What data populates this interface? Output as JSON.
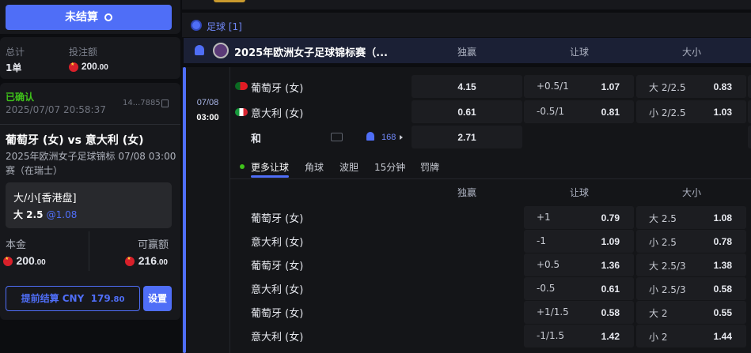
{
  "left": {
    "unsettled_button": "未结算",
    "summary": {
      "total_label": "总计",
      "total_value": "1单",
      "stake_label": "投注额",
      "stake_int": "200",
      "stake_dec": ".00"
    },
    "bet": {
      "status": "已确认",
      "time": "2025/07/07 20:58:37",
      "id": "14...7885",
      "match": "葡萄牙 (女) vs 意大利 (女)",
      "league_line1": "2025年欧洲女子足球锦标  07/08 03:00",
      "league_line2": "赛（在瑞士）",
      "market": "大/小[香港盘]",
      "selection": "大 2.5",
      "odds": "@1.08",
      "principal_label": "本金",
      "principal_int": "200",
      "principal_dec": ".00",
      "payout_label": "可赢额",
      "payout_int": "216",
      "payout_dec": ".00",
      "cashout_label": "提前结算 CNY",
      "cashout_int": "179",
      "cashout_dec": ".80",
      "settings_button": "设置"
    }
  },
  "main": {
    "sport_header": "足球 [1]",
    "league": "2025年欧洲女子足球锦标赛（...",
    "columns": [
      "独赢",
      "让球",
      "大小"
    ],
    "match": {
      "date": "07/08",
      "time": "03:00",
      "home": "葡萄牙 (女)",
      "away": "意大利 (女)",
      "draw": "和",
      "markets_count": "168",
      "home_1x2": "4.15",
      "away_1x2": "0.61",
      "draw_1x2": "2.71",
      "home_hdp": "+0.5/1",
      "home_hdp_odds": "1.07",
      "away_hdp": "-0.5/1",
      "away_hdp_odds": "0.81",
      "over": "大 2/2.5",
      "over_odds": "0.83",
      "under": "小 2/2.5",
      "under_odds": "1.03"
    },
    "tabs": [
      "更多让球",
      "角球",
      "波胆",
      "15分钟",
      "罚牌"
    ],
    "more_rows": [
      {
        "team": "葡萄牙 (女)",
        "hdp": "+1",
        "hdp_odds": "0.79",
        "ou": "大 2.5",
        "ou_odds": "1.08"
      },
      {
        "team": "意大利 (女)",
        "hdp": "-1",
        "hdp_odds": "1.09",
        "ou": "小 2.5",
        "ou_odds": "0.78"
      },
      {
        "team": "葡萄牙 (女)",
        "hdp": "+0.5",
        "hdp_odds": "1.36",
        "ou": "大 2.5/3",
        "ou_odds": "1.38"
      },
      {
        "team": "意大利 (女)",
        "hdp": "-0.5",
        "hdp_odds": "0.61",
        "ou": "小 2.5/3",
        "ou_odds": "0.58"
      },
      {
        "team": "葡萄牙 (女)",
        "hdp": "+1/1.5",
        "hdp_odds": "0.58",
        "ou": "大 2",
        "ou_odds": "0.55"
      },
      {
        "team": "意大利 (女)",
        "hdp": "-1/1.5",
        "hdp_odds": "1.42",
        "ou": "小 2",
        "ou_odds": "1.44"
      }
    ]
  },
  "colors": {
    "accent": "#4f6ef7",
    "confirmed": "#3fc21a",
    "league_bg": "#1b2035"
  }
}
